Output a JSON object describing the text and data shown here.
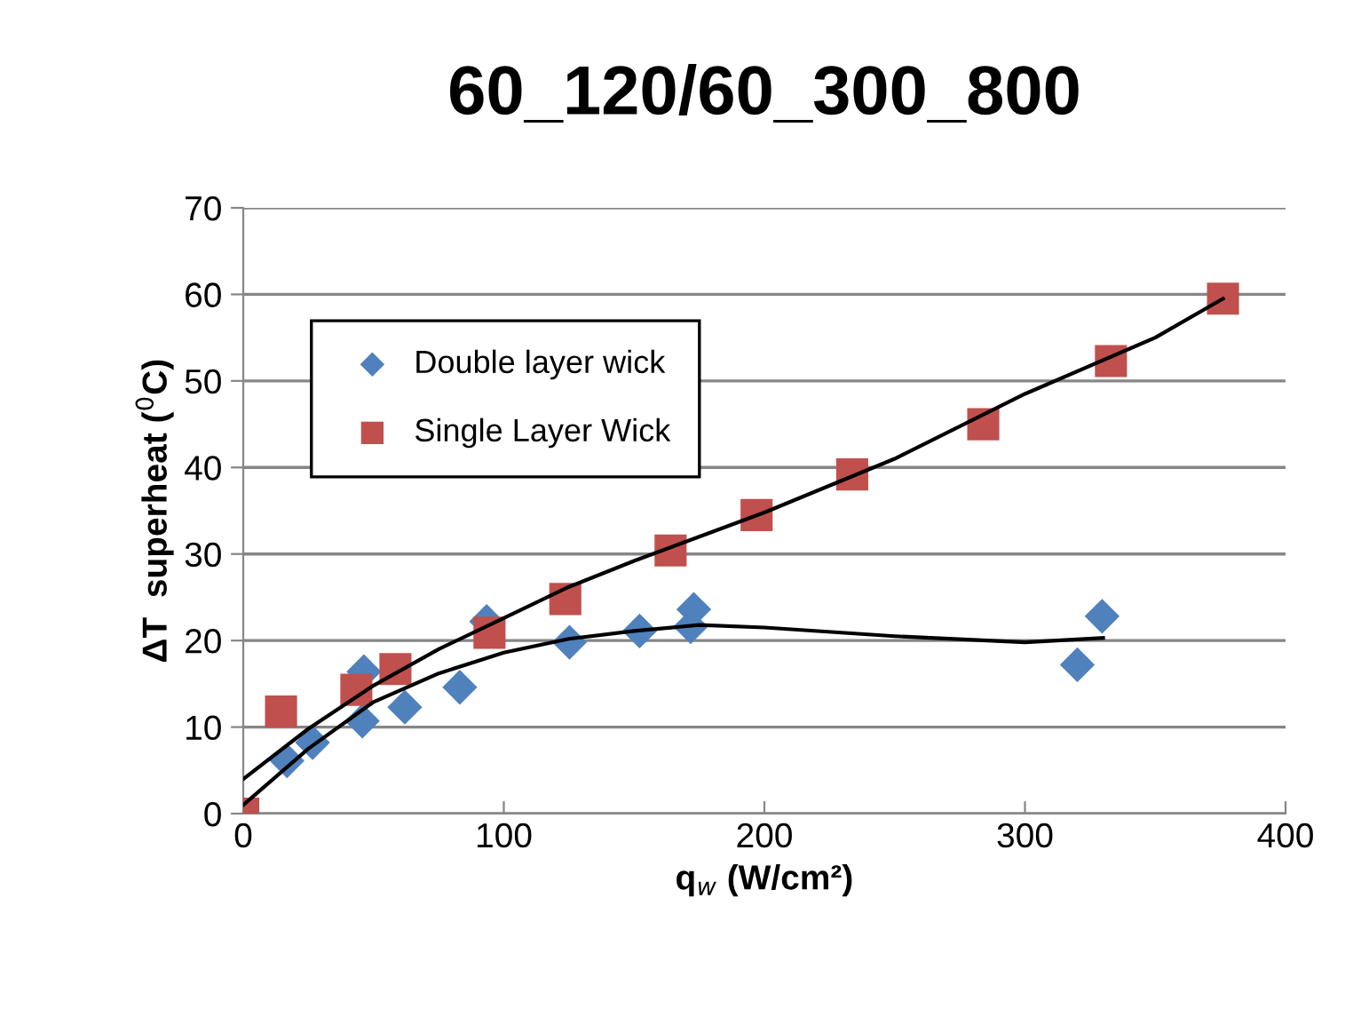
{
  "chart_data": {
    "type": "scatter",
    "title": "60_120/60_300_800",
    "xlabel": "q$_{w}$ (W/cm²)",
    "ylabel": "ΔT  superheat ($^{0}$C)",
    "xlim": [
      0,
      400
    ],
    "xticks": [
      0,
      100,
      200,
      300,
      400
    ],
    "ylim": [
      0,
      70
    ],
    "yticks": [
      0,
      10,
      20,
      30,
      40,
      50,
      60,
      70
    ],
    "grid": "y",
    "legend": "top left",
    "series": [
      {
        "name": "Double layer wick",
        "color": "#4f81bd",
        "marker": "diamond",
        "x": [
          16.8,
          26.6,
          46.3,
          45.7,
          62.0,
          83.1,
          93.4,
          125.2,
          152.1,
          172.9,
          171.7,
          320.1,
          329.6
        ],
        "values": [
          6.1,
          8.2,
          16.4,
          10.7,
          12.3,
          14.6,
          22.2,
          19.8,
          21.1,
          23.6,
          21.6,
          17.2,
          22.8
        ]
      },
      {
        "name": "Single Layer Wick",
        "color": "#c0504d",
        "marker": "square",
        "x": [
          0,
          14.5,
          43.4,
          58.4,
          94.5,
          123.6,
          164,
          197,
          233.7,
          284,
          333,
          376
        ],
        "values": [
          0,
          11.8,
          14.3,
          16.7,
          20.9,
          24.8,
          30.4,
          34.5,
          39.2,
          45,
          52.3,
          59.5
        ]
      },
      {
        "type": "line",
        "color": "#000000",
        "marker": "none",
        "x": [
          0,
          25,
          50,
          75,
          100,
          125,
          150,
          175,
          200,
          250,
          300,
          350,
          376
        ],
        "values": [
          4.0,
          9.8,
          14.8,
          19.0,
          22.6,
          26.2,
          29.2,
          32.0,
          34.8,
          41,
          48.5,
          55,
          59.5
        ]
      },
      {
        "type": "line",
        "color": "#000000",
        "marker": "none",
        "x": [
          0,
          25,
          50,
          75,
          100,
          125,
          150,
          175,
          200,
          250,
          300,
          330
        ],
        "values": [
          1.0,
          7.5,
          12.9,
          16.2,
          18.6,
          20.2,
          21.1,
          21.8,
          21.5,
          20.5,
          19.8,
          20.3
        ]
      }
    ]
  }
}
